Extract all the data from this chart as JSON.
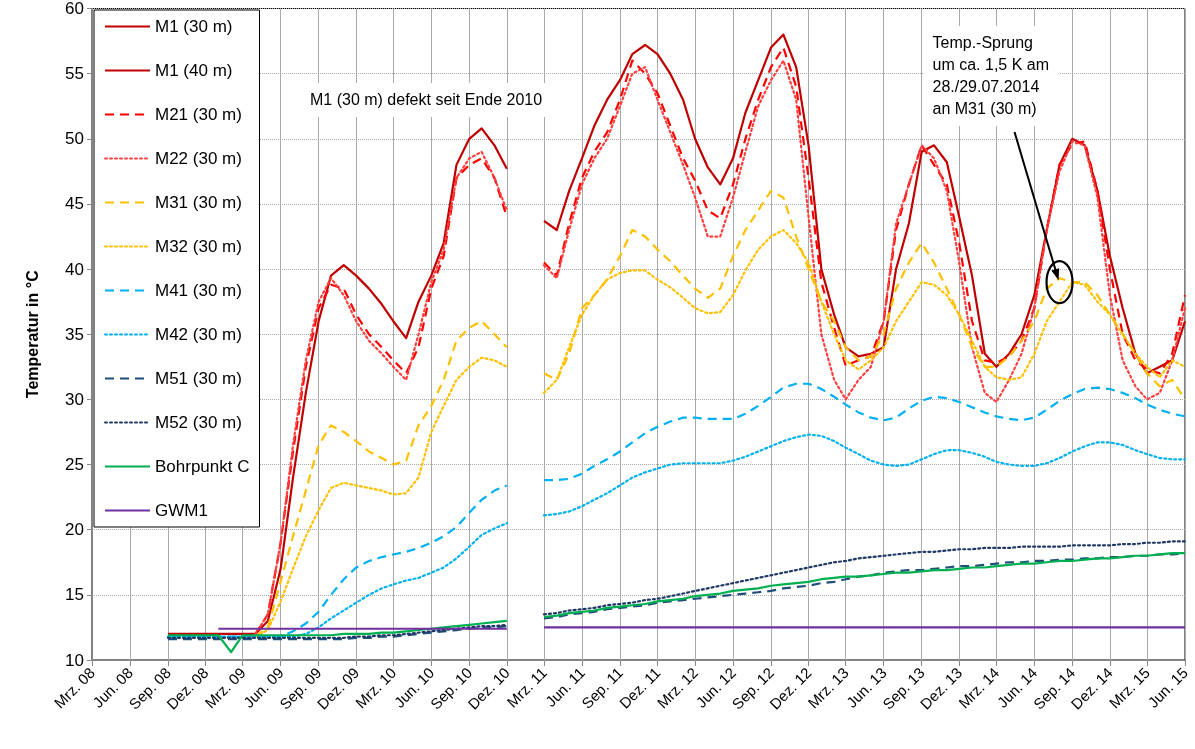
{
  "chart_data": {
    "type": "line",
    "ylabel": "Temperatur in °C",
    "annotations": [
      "M1 (30 m) defekt seit Ende 2010",
      {
        "text": "Temp.-Sprung\num ca. 1,5 K am\n28./29.07.2014\nan M31 (30 m)",
        "x": "2014-08",
        "y": 39
      }
    ],
    "x": [
      "2008-09",
      "2008-10",
      "2008-11",
      "2008-12",
      "2009-01",
      "2009-02",
      "2009-03",
      "2009-04",
      "2009-05",
      "2009-06",
      "2009-07",
      "2009-08",
      "2009-09",
      "2009-10",
      "2009-11",
      "2009-12",
      "2010-01",
      "2010-02",
      "2010-03",
      "2010-04",
      "2010-05",
      "2010-06",
      "2010-07",
      "2010-08",
      "2010-09",
      "2010-10",
      "2010-11",
      "2010-12",
      "2011-01",
      "2011-02",
      "2011-03",
      "2011-04",
      "2011-05",
      "2011-06",
      "2011-07",
      "2011-08",
      "2011-09",
      "2011-10",
      "2011-11",
      "2011-12",
      "2012-01",
      "2012-02",
      "2012-03",
      "2012-04",
      "2012-05",
      "2012-06",
      "2012-07",
      "2012-08",
      "2012-09",
      "2012-10",
      "2012-11",
      "2012-12",
      "2013-01",
      "2013-02",
      "2013-03",
      "2013-04",
      "2013-05",
      "2013-06",
      "2013-07",
      "2013-08",
      "2013-09",
      "2013-10",
      "2013-11",
      "2013-12",
      "2014-01",
      "2014-02",
      "2014-03",
      "2014-04",
      "2014-05",
      "2014-06",
      "2014-07",
      "2014-08",
      "2014-09",
      "2014-10",
      "2014-11",
      "2014-12",
      "2015-01",
      "2015-02",
      "2015-03",
      "2015-04",
      "2015-05",
      "2015-06"
    ],
    "xlim": [
      "2008-03",
      "2015-06"
    ],
    "xticks": [
      {
        "value": "2008-03",
        "label": "Mrz. 08"
      },
      {
        "value": "2008-06",
        "label": "Jun. 08"
      },
      {
        "value": "2008-09",
        "label": "Sep. 08"
      },
      {
        "value": "2008-12",
        "label": "Dez. 08"
      },
      {
        "value": "2009-03",
        "label": "Mrz. 09"
      },
      {
        "value": "2009-06",
        "label": "Jun. 09"
      },
      {
        "value": "2009-09",
        "label": "Sep. 09"
      },
      {
        "value": "2009-12",
        "label": "Dez. 09"
      },
      {
        "value": "2010-03",
        "label": "Mrz. 10"
      },
      {
        "value": "2010-06",
        "label": "Jun. 10"
      },
      {
        "value": "2010-09",
        "label": "Sep. 10"
      },
      {
        "value": "2010-12",
        "label": "Dez. 10"
      },
      {
        "value": "2011-03",
        "label": "Mrz. 11"
      },
      {
        "value": "2011-06",
        "label": "Jun. 11"
      },
      {
        "value": "2011-09",
        "label": "Sep. 11"
      },
      {
        "value": "2011-12",
        "label": "Dez. 11"
      },
      {
        "value": "2012-03",
        "label": "Mrz. 12"
      },
      {
        "value": "2012-06",
        "label": "Jun. 12"
      },
      {
        "value": "2012-09",
        "label": "Sep. 12"
      },
      {
        "value": "2012-12",
        "label": "Dez. 12"
      },
      {
        "value": "2013-03",
        "label": "Mrz. 13"
      },
      {
        "value": "2013-06",
        "label": "Jun. 13"
      },
      {
        "value": "2013-09",
        "label": "Sep. 13"
      },
      {
        "value": "2013-12",
        "label": "Dez. 13"
      },
      {
        "value": "2014-03",
        "label": "Mrz. 14"
      },
      {
        "value": "2014-06",
        "label": "Jun. 14"
      },
      {
        "value": "2014-09",
        "label": "Sep. 14"
      },
      {
        "value": "2014-12",
        "label": "Dez. 14"
      },
      {
        "value": "2015-03",
        "label": "Mrz. 15"
      },
      {
        "value": "2015-06",
        "label": "Jun. 15"
      }
    ],
    "ylim": [
      10,
      60
    ],
    "yticks": [
      10,
      15,
      20,
      25,
      30,
      35,
      40,
      45,
      50,
      55,
      60
    ],
    "grid": true,
    "legend": "top left",
    "marker": "none",
    "series": [
      {
        "name": "M1 (30 m)",
        "color": "#c00000",
        "line_style": "solid",
        "values": [
          12,
          12,
          12,
          12,
          12,
          12,
          12,
          12,
          13,
          17,
          24,
          30.5,
          36,
          39.5,
          40.3,
          39.5,
          38.5,
          37.3,
          36,
          34.7,
          37.5,
          39.5,
          42,
          48,
          50,
          50.8,
          49.5,
          47.7,
          null,
          null,
          null,
          null,
          null,
          null,
          null,
          null,
          null,
          null,
          null,
          null,
          null,
          null,
          null,
          null,
          null,
          null,
          null,
          null,
          null,
          null,
          null,
          null,
          null,
          null,
          null,
          null,
          null,
          null,
          null,
          null,
          null,
          null,
          null,
          null,
          null,
          null,
          null,
          null,
          null,
          null,
          null,
          null,
          null,
          null,
          null,
          null,
          null,
          null,
          null,
          null,
          null,
          null
        ]
      },
      {
        "name": "M1 (40 m)",
        "color": "#c00000",
        "line_style": "solid",
        "values": [
          null,
          null,
          null,
          null,
          null,
          null,
          null,
          null,
          null,
          null,
          null,
          null,
          null,
          null,
          null,
          null,
          null,
          null,
          null,
          null,
          null,
          null,
          null,
          null,
          null,
          null,
          null,
          null,
          null,
          null,
          43.7,
          43,
          46,
          48.5,
          51,
          53,
          54.5,
          56.5,
          57.2,
          56.5,
          55,
          53,
          50,
          47.8,
          46.5,
          48.5,
          52,
          54.5,
          57,
          58,
          55.5,
          49.5,
          40,
          36.5,
          34,
          33.3,
          33.5,
          34,
          40,
          43.5,
          49,
          49.5,
          48.2,
          44,
          39.5,
          33.5,
          32.5,
          33.5,
          35,
          38,
          43,
          48,
          50,
          49.5,
          46,
          41,
          37,
          33.5,
          32,
          32.5,
          33,
          36
        ]
      },
      {
        "name": "M21 (30 m)",
        "color": "#ff0000",
        "line_style": "dashed",
        "values": [
          null,
          null,
          null,
          null,
          null,
          null,
          null,
          12,
          13.5,
          19,
          26,
          32.5,
          37,
          38.8,
          38.5,
          36.5,
          35,
          34,
          33,
          32,
          34,
          38.5,
          41,
          47,
          48,
          48.5,
          47,
          44,
          null,
          null,
          40.5,
          39.5,
          43.5,
          47,
          49,
          50.5,
          53,
          56,
          55,
          53.5,
          51,
          48.5,
          46.8,
          44.5,
          43.9,
          46.5,
          50,
          53,
          55.5,
          57,
          54,
          47,
          39,
          35.5,
          32.6,
          33,
          33.3,
          36,
          43,
          46.5,
          49.5,
          48,
          46.5,
          42,
          36,
          33,
          32.8,
          33.3,
          34.5,
          37,
          43,
          48,
          49.6,
          49.8,
          46,
          40,
          35,
          33,
          32.3,
          32,
          33.5,
          38
        ]
      },
      {
        "name": "M22 (30 m)",
        "color": "#ff4040",
        "line_style": "dotted",
        "values": [
          null,
          null,
          null,
          null,
          null,
          null,
          null,
          12,
          13.5,
          19,
          26.5,
          33,
          37.5,
          39.3,
          38,
          36,
          34.5,
          33.5,
          32.5,
          31.5,
          35,
          39,
          41.5,
          47,
          48.5,
          49,
          47,
          44.5,
          null,
          null,
          40.3,
          39.3,
          43,
          46.5,
          48.5,
          50,
          52.5,
          55,
          55.5,
          53,
          50.5,
          48,
          45.5,
          42.5,
          42.5,
          45.5,
          49,
          52.5,
          54.5,
          56,
          53,
          44,
          35,
          31.5,
          30,
          31.5,
          32.5,
          36,
          43.5,
          46.5,
          49.5,
          48.5,
          46,
          40.5,
          34,
          30.5,
          29.8,
          31.5,
          33.5,
          37,
          43,
          47.5,
          49.8,
          49.5,
          45.5,
          38,
          33,
          31,
          30,
          30.5,
          33,
          37
        ]
      },
      {
        "name": "M31 (30 m)",
        "color": "#ffc000",
        "line_style": "dashed",
        "values": [
          null,
          null,
          null,
          null,
          null,
          null,
          null,
          11.8,
          12.5,
          16,
          19.5,
          23,
          26.5,
          28,
          27.5,
          26.8,
          26,
          25.5,
          25,
          25.3,
          28,
          29.5,
          31.5,
          34.5,
          35.5,
          36,
          35,
          34,
          null,
          null,
          32,
          31.5,
          33.5,
          37,
          38,
          39.2,
          41,
          43,
          42.5,
          41.5,
          40.6,
          39.5,
          38.5,
          37.8,
          38.5,
          41,
          43,
          44.5,
          46,
          45.5,
          42.5,
          40,
          37.5,
          36,
          34,
          33,
          33.3,
          35,
          38.5,
          40.5,
          42,
          40.5,
          38.5,
          36.5,
          34,
          32.5,
          32.5,
          33.3,
          34.5,
          36,
          38.5,
          39.3,
          39,
          39,
          38,
          36.5,
          35,
          33.5,
          32,
          31,
          31.5,
          30
        ]
      },
      {
        "name": "M32 (30 m)",
        "color": "#ffc000",
        "line_style": "dotted",
        "values": [
          null,
          null,
          null,
          null,
          null,
          null,
          null,
          11.8,
          12.3,
          14.5,
          17,
          19.5,
          21.5,
          23.2,
          23.6,
          23.4,
          23.2,
          23,
          22.7,
          22.8,
          24,
          27.5,
          29.5,
          31.5,
          32.5,
          33.2,
          33,
          32.5,
          null,
          null,
          30.5,
          31.5,
          34,
          36.5,
          38,
          39.2,
          39.7,
          39.9,
          39.9,
          39.2,
          38.6,
          37.8,
          37,
          36.6,
          36.7,
          38,
          39.9,
          41.5,
          42.5,
          43,
          42,
          40.5,
          37.5,
          35,
          33,
          32.3,
          33,
          34,
          36,
          37.5,
          39,
          38.8,
          38,
          36.5,
          34.5,
          32.5,
          31.7,
          31.5,
          31.7,
          33.5,
          36,
          37.5,
          39,
          38.8,
          37.5,
          36.5,
          35,
          33.5,
          32.5,
          31.7,
          33,
          32.5
        ]
      },
      {
        "name": "M41 (30 m)",
        "color": "#00b0f0",
        "line_style": "dashed",
        "values": [
          11.8,
          11.8,
          11.8,
          11.8,
          11.8,
          11.8,
          11.8,
          11.8,
          11.8,
          11.8,
          12.2,
          12.8,
          13.7,
          15,
          16.2,
          17.1,
          17.6,
          17.9,
          18.1,
          18.3,
          18.6,
          19,
          19.5,
          20.2,
          21.3,
          22.3,
          23,
          23.4,
          null,
          null,
          23.8,
          23.8,
          23.9,
          24.3,
          24.9,
          25.4,
          26,
          26.7,
          27.4,
          27.9,
          28.3,
          28.6,
          28.6,
          28.5,
          28.5,
          28.5,
          28.9,
          29.5,
          30.2,
          30.9,
          31.2,
          31.2,
          30.8,
          30.2,
          29.6,
          29,
          28.6,
          28.4,
          28.6,
          29.3,
          29.9,
          30.2,
          30.1,
          29.8,
          29.4,
          29,
          28.7,
          28.5,
          28.4,
          28.6,
          29.2,
          29.9,
          30.4,
          30.8,
          30.9,
          30.8,
          30.5,
          30.1,
          29.6,
          29.2,
          28.9,
          28.7
        ]
      },
      {
        "name": "M42 (30 m)",
        "color": "#00b0f0",
        "line_style": "dotted",
        "values": [
          11.8,
          11.8,
          11.8,
          11.8,
          11.8,
          11.8,
          11.8,
          11.8,
          11.8,
          11.8,
          11.8,
          12,
          12.5,
          13.2,
          13.8,
          14.4,
          15,
          15.5,
          15.8,
          16.1,
          16.3,
          16.7,
          17.1,
          17.8,
          18.7,
          19.6,
          20.1,
          20.5,
          null,
          null,
          21.1,
          21.2,
          21.4,
          21.8,
          22.3,
          22.8,
          23.4,
          24,
          24.4,
          24.7,
          25,
          25.1,
          25.1,
          25.1,
          25.1,
          25.3,
          25.6,
          26,
          26.4,
          26.8,
          27.1,
          27.3,
          27.2,
          26.8,
          26.3,
          25.8,
          25.3,
          25,
          24.9,
          25,
          25.4,
          25.8,
          26.1,
          26.1,
          25.9,
          25.6,
          25.2,
          25,
          24.9,
          24.9,
          25.1,
          25.5,
          26,
          26.4,
          26.7,
          26.7,
          26.5,
          26.1,
          25.8,
          25.5,
          25.4,
          25.4
        ]
      },
      {
        "name": "M51 (30 m)",
        "color": "#1f4e79",
        "line_style": "dashed",
        "values": [
          11.6,
          11.6,
          11.6,
          11.6,
          11.6,
          11.6,
          11.6,
          11.6,
          11.6,
          11.6,
          11.6,
          11.6,
          11.6,
          11.6,
          11.6,
          11.7,
          11.7,
          11.8,
          11.8,
          11.9,
          12,
          12.1,
          12.2,
          12.3,
          12.4,
          12.5,
          12.5,
          12.6,
          null,
          null,
          13.2,
          13.3,
          13.5,
          13.6,
          13.7,
          13.9,
          14,
          14.1,
          14.2,
          14.4,
          14.5,
          14.6,
          14.7,
          14.8,
          14.9,
          15,
          15.1,
          15.2,
          15.3,
          15.5,
          15.6,
          15.7,
          15.9,
          16,
          16.2,
          16.4,
          16.5,
          16.7,
          16.8,
          16.9,
          16.9,
          17,
          17.1,
          17.2,
          17.2,
          17.3,
          17.4,
          17.5,
          17.5,
          17.6,
          17.6,
          17.7,
          17.7,
          17.8,
          17.8,
          17.9,
          17.9,
          18,
          18,
          18.1,
          18.1,
          18.2
        ]
      },
      {
        "name": "M52 (30 m)",
        "color": "#1f3864",
        "line_style": "dotted",
        "values": [
          11.7,
          11.7,
          11.7,
          11.7,
          11.7,
          11.7,
          11.7,
          11.7,
          11.7,
          11.7,
          11.7,
          11.7,
          11.7,
          11.7,
          11.7,
          11.8,
          11.8,
          11.9,
          11.9,
          12,
          12.1,
          12.2,
          12.3,
          12.4,
          12.5,
          12.6,
          12.6,
          12.7,
          null,
          null,
          13.5,
          13.6,
          13.8,
          13.9,
          14,
          14.2,
          14.3,
          14.4,
          14.6,
          14.7,
          14.9,
          15.1,
          15.3,
          15.5,
          15.7,
          15.9,
          16.1,
          16.3,
          16.5,
          16.7,
          16.9,
          17.1,
          17.3,
          17.5,
          17.6,
          17.8,
          17.9,
          18,
          18.1,
          18.2,
          18.3,
          18.3,
          18.4,
          18.5,
          18.5,
          18.6,
          18.6,
          18.6,
          18.7,
          18.7,
          18.7,
          18.7,
          18.8,
          18.8,
          18.8,
          18.8,
          18.9,
          18.9,
          19,
          19,
          19.1,
          19.1
        ]
      },
      {
        "name": "Bohrpunkt C",
        "color": "#00b050",
        "line_style": "solid",
        "values": [
          11.9,
          11.9,
          11.9,
          11.9,
          11.9,
          10.6,
          11.9,
          11.9,
          11.9,
          11.9,
          11.9,
          11.9,
          11.9,
          11.9,
          12,
          12,
          12,
          12.1,
          12.1,
          12.2,
          12.3,
          12.4,
          12.5,
          12.6,
          12.7,
          12.8,
          12.9,
          13,
          null,
          null,
          13.3,
          13.4,
          13.6,
          13.7,
          13.8,
          14,
          14.1,
          14.2,
          14.3,
          14.5,
          14.6,
          14.7,
          14.9,
          15,
          15.1,
          15.3,
          15.4,
          15.5,
          15.7,
          15.8,
          15.9,
          16,
          16.2,
          16.3,
          16.4,
          16.4,
          16.5,
          16.6,
          16.7,
          16.7,
          16.8,
          16.9,
          16.9,
          17,
          17.1,
          17.1,
          17.2,
          17.3,
          17.4,
          17.4,
          17.5,
          17.6,
          17.6,
          17.7,
          17.8,
          17.8,
          17.9,
          18,
          18,
          18.1,
          18.2,
          18.2
        ]
      },
      {
        "name": "GWM1",
        "color": "#7030a0",
        "line_style": "solid",
        "values": [
          null,
          null,
          null,
          null,
          12.4,
          12.4,
          12.4,
          12.4,
          12.4,
          12.4,
          12.4,
          12.4,
          12.4,
          12.4,
          12.4,
          12.4,
          12.4,
          12.4,
          12.4,
          12.4,
          12.4,
          12.4,
          12.4,
          12.4,
          12.4,
          12.4,
          12.4,
          12.4,
          null,
          null,
          12.5,
          12.5,
          12.5,
          12.5,
          12.5,
          12.5,
          12.5,
          12.5,
          12.5,
          12.5,
          12.5,
          12.5,
          12.5,
          12.5,
          12.5,
          12.5,
          12.5,
          12.5,
          12.5,
          12.5,
          12.5,
          12.5,
          12.5,
          12.5,
          12.5,
          12.5,
          12.5,
          12.5,
          12.5,
          12.5,
          12.5,
          12.5,
          12.5,
          12.5,
          12.5,
          12.5,
          12.5,
          12.5,
          12.5,
          12.5,
          12.5,
          12.5,
          12.5,
          12.5,
          12.5,
          12.5,
          12.5,
          12.5,
          12.5,
          12.5,
          12.5,
          12.5
        ]
      }
    ]
  }
}
